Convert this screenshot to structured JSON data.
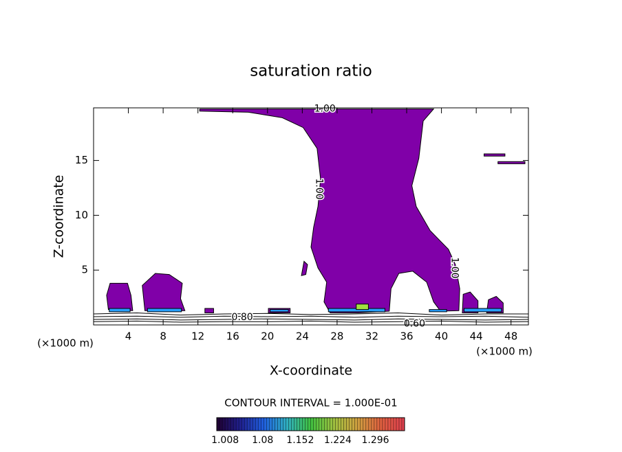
{
  "chart_data": {
    "type": "contour",
    "title": "saturation ratio",
    "x_label": "X-coordinate",
    "y_label": "Z-coordinate",
    "x_unit_left": "(×1000 m)",
    "x_unit_right": "(×1000 m)",
    "xlim": [
      0,
      50
    ],
    "ylim": [
      0,
      19.8
    ],
    "xticks": [
      4,
      8,
      12,
      16,
      20,
      24,
      28,
      32,
      36,
      40,
      44,
      48
    ],
    "yticks": [
      5,
      10,
      15
    ],
    "regions": [
      {
        "color": "#8000a8",
        "x": [
          12.2,
          39.1,
          37.9,
          37.4,
          36.6,
          37.1,
          38.7,
          40.8,
          41.6,
          42.1,
          42.0,
          39.9,
          39.1,
          38.3,
          36.7,
          35.1,
          34.2,
          34.0,
          30.4,
          27.2,
          26.5,
          26.8,
          25.8,
          25.0,
          25.3,
          25.8,
          26.1,
          25.7,
          24.1,
          21.7,
          17.8,
          12.2
        ],
        "y": [
          19.7,
          19.7,
          18.6,
          15.2,
          12.7,
          10.8,
          8.6,
          6.9,
          5.5,
          3.3,
          1.3,
          1.25,
          2.1,
          3.9,
          4.9,
          4.7,
          3.3,
          1.25,
          1.1,
          1.1,
          2.1,
          3.9,
          5.2,
          7.1,
          8.9,
          10.8,
          13.3,
          16.1,
          18.0,
          18.9,
          19.4,
          19.5
        ]
      },
      {
        "color": "#8000a8",
        "x": [
          1.7,
          1.5,
          1.9,
          3.9,
          4.3,
          4.5
        ],
        "y": [
          1.4,
          2.7,
          3.8,
          3.8,
          2.7,
          1.3
        ]
      },
      {
        "color": "#8000a8",
        "x": [
          5.9,
          5.6,
          7.1,
          8.7,
          10.2,
          10.0,
          10.5
        ],
        "y": [
          1.3,
          3.6,
          4.7,
          4.6,
          3.8,
          2.4,
          1.3
        ]
      },
      {
        "color": "#8000a8",
        "x": [
          42.4,
          42.5,
          43.3,
          44.2,
          44.2
        ],
        "y": [
          1.1,
          2.8,
          3.0,
          2.2,
          1.1
        ]
      },
      {
        "color": "#8000a8",
        "x": [
          45.2,
          45.4,
          46.3,
          47.1,
          47.1
        ],
        "y": [
          1.1,
          2.3,
          2.6,
          2.0,
          1.1
        ]
      },
      {
        "color": "#8000a8",
        "x": [
          23.9,
          24.2,
          24.6,
          24.4
        ],
        "y": [
          4.5,
          5.8,
          5.5,
          4.6
        ]
      },
      {
        "color": "#8000a8",
        "x": [
          44.9,
          47.3,
          47.3,
          44.9
        ],
        "y": [
          15.6,
          15.6,
          15.4,
          15.4
        ]
      },
      {
        "color": "#8000a8",
        "x": [
          46.5,
          49.6,
          49.6,
          46.5
        ],
        "y": [
          14.9,
          14.9,
          14.7,
          14.7
        ]
      },
      {
        "color": "#8000a8",
        "x": [
          20.1,
          22.6,
          22.6,
          20.1
        ],
        "y": [
          1.5,
          1.5,
          1.1,
          1.1
        ]
      },
      {
        "color": "#8000a8",
        "x": [
          12.8,
          13.8,
          13.8,
          12.8
        ],
        "y": [
          1.5,
          1.5,
          1.1,
          1.1
        ]
      },
      {
        "color": "#28a0ff",
        "x": [
          1.8,
          4.2,
          4.2,
          1.8
        ],
        "y": [
          1.5,
          1.5,
          1.2,
          1.2
        ]
      },
      {
        "color": "#28a0ff",
        "x": [
          6.2,
          10.1,
          10.1,
          6.2
        ],
        "y": [
          1.5,
          1.5,
          1.2,
          1.2
        ]
      },
      {
        "color": "#28a0ff",
        "x": [
          20.3,
          22.4,
          22.4,
          20.3
        ],
        "y": [
          1.4,
          1.4,
          1.2,
          1.2
        ]
      },
      {
        "color": "#28a0ff",
        "x": [
          27.0,
          33.5,
          33.5,
          27.0
        ],
        "y": [
          1.5,
          1.5,
          1.2,
          1.2
        ]
      },
      {
        "color": "#a0e040",
        "x": [
          30.2,
          31.6,
          31.6,
          30.2
        ],
        "y": [
          1.9,
          1.9,
          1.4,
          1.4
        ]
      },
      {
        "color": "#28a0ff",
        "x": [
          38.6,
          40.6,
          40.6,
          38.6
        ],
        "y": [
          1.4,
          1.4,
          1.2,
          1.2
        ]
      },
      {
        "color": "#28a0ff",
        "x": [
          42.6,
          46.9,
          46.9,
          42.6
        ],
        "y": [
          1.5,
          1.5,
          1.2,
          1.2
        ]
      }
    ],
    "lines": [
      {
        "x": [
          0,
          5,
          10,
          15,
          20,
          25,
          30,
          35,
          40,
          45,
          50
        ],
        "y": [
          1.0,
          1.1,
          0.9,
          1.0,
          1.05,
          0.95,
          1.0,
          1.1,
          0.9,
          1.0,
          1.0
        ]
      },
      {
        "x": [
          0,
          5,
          10,
          15,
          20,
          25,
          30,
          35,
          40,
          45,
          50
        ],
        "y": [
          0.75,
          0.8,
          0.7,
          0.8,
          0.75,
          0.8,
          0.7,
          0.8,
          0.75,
          0.8,
          0.7
        ]
      },
      {
        "x": [
          0,
          5,
          10,
          15,
          20,
          25,
          30,
          35,
          40,
          45,
          50
        ],
        "y": [
          0.5,
          0.55,
          0.45,
          0.5,
          0.55,
          0.5,
          0.45,
          0.55,
          0.5,
          0.45,
          0.5
        ]
      },
      {
        "x": [
          0,
          5,
          10,
          15,
          20,
          25,
          30,
          35,
          40,
          45,
          50
        ],
        "y": [
          0.3,
          0.35,
          0.25,
          0.3,
          0.3,
          0.35,
          0.25,
          0.3,
          0.35,
          0.25,
          0.3
        ]
      }
    ],
    "contour_labels": [
      {
        "text": "1.00",
        "x": 26.6,
        "y": 19.7,
        "vertical": false
      },
      {
        "text": "1.00",
        "x": 25.9,
        "y": 12.4,
        "vertical": true
      },
      {
        "text": "1.00",
        "x": 41.5,
        "y": 5.2,
        "vertical": true
      },
      {
        "text": "0.80",
        "x": 17.1,
        "y": 0.7,
        "vertical": false
      },
      {
        "text": "0.60",
        "x": 36.9,
        "y": 0.1,
        "vertical": false
      }
    ],
    "contour_interval": "CONTOUR INTERVAL = 1.000E-01",
    "colorbar": {
      "range": [
        0.992,
        1.352
      ],
      "ticks": [
        1.008,
        1.08,
        1.152,
        1.224,
        1.296
      ],
      "colors": [
        "#200030",
        "#202090",
        "#2060e0",
        "#30b0c0",
        "#40c040",
        "#a0c040",
        "#d0a040",
        "#e06040",
        "#e04050"
      ]
    }
  }
}
